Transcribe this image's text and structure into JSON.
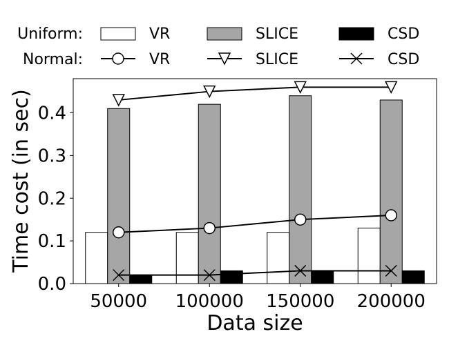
{
  "chart_data": {
    "type": "bar",
    "title": "",
    "xlabel": "Data size",
    "ylabel": "Time cost (in sec)",
    "categories": [
      "50000",
      "100000",
      "150000",
      "200000"
    ],
    "ylim": [
      0,
      0.48
    ],
    "yticks": [
      "0.0",
      "0.1",
      "0.2",
      "0.3",
      "0.4"
    ],
    "grid": false,
    "legend_position": "top",
    "legend": {
      "uniform_label": "Uniform:",
      "normal_label": "Normal:"
    },
    "bar_series": [
      {
        "name": "VR",
        "group": "Uniform",
        "values": [
          0.12,
          0.12,
          0.12,
          0.13
        ],
        "color": "#ffffff"
      },
      {
        "name": "SLICE",
        "group": "Uniform",
        "values": [
          0.41,
          0.42,
          0.44,
          0.43
        ],
        "color": "#a6a6a6"
      },
      {
        "name": "CSD",
        "group": "Uniform",
        "values": [
          0.02,
          0.03,
          0.03,
          0.03
        ],
        "color": "#000000"
      }
    ],
    "line_series": [
      {
        "name": "VR",
        "group": "Normal",
        "marker": "circle",
        "values": [
          0.12,
          0.13,
          0.15,
          0.16
        ]
      },
      {
        "name": "SLICE",
        "group": "Normal",
        "marker": "triangle-down",
        "values": [
          0.43,
          0.45,
          0.46,
          0.46
        ]
      },
      {
        "name": "CSD",
        "group": "Normal",
        "marker": "x",
        "values": [
          0.02,
          0.02,
          0.03,
          0.03
        ]
      }
    ]
  }
}
